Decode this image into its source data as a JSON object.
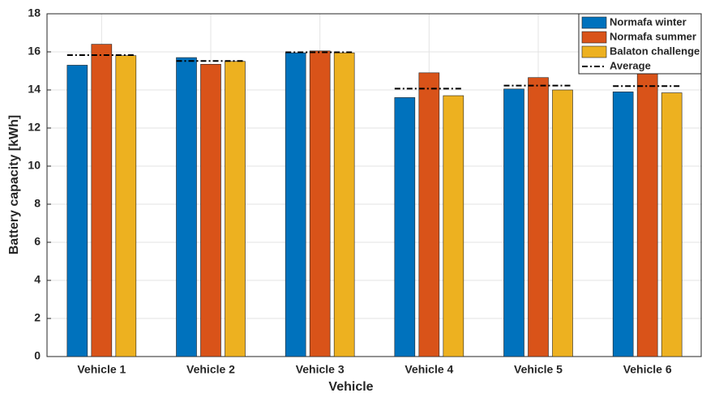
{
  "chart_data": {
    "type": "bar",
    "xlabel": "Vehicle",
    "ylabel": "Battery capacity [kWh]",
    "categories": [
      "Vehicle 1",
      "Vehicle 2",
      "Vehicle 3",
      "Vehicle 4",
      "Vehicle 5",
      "Vehicle 6"
    ],
    "series": [
      {
        "name": "Normafa winter",
        "color": "#0072bd",
        "values": [
          15.3,
          15.7,
          15.95,
          13.6,
          14.05,
          13.9
        ]
      },
      {
        "name": "Normafa summer",
        "color": "#d95319",
        "values": [
          16.4,
          15.35,
          16.05,
          14.9,
          14.65,
          14.85
        ]
      },
      {
        "name": "Balaton challenge",
        "color": "#edb120",
        "values": [
          15.8,
          15.5,
          15.95,
          13.7,
          14.0,
          13.85
        ]
      }
    ],
    "average": {
      "name": "Average",
      "color": "#000000",
      "values": [
        15.83,
        15.52,
        15.98,
        14.07,
        14.23,
        14.2
      ]
    },
    "ylim": [
      0,
      18
    ],
    "yticks": [
      0,
      2,
      4,
      6,
      8,
      10,
      12,
      14,
      16,
      18
    ],
    "grid": true,
    "legend": "upper right"
  }
}
